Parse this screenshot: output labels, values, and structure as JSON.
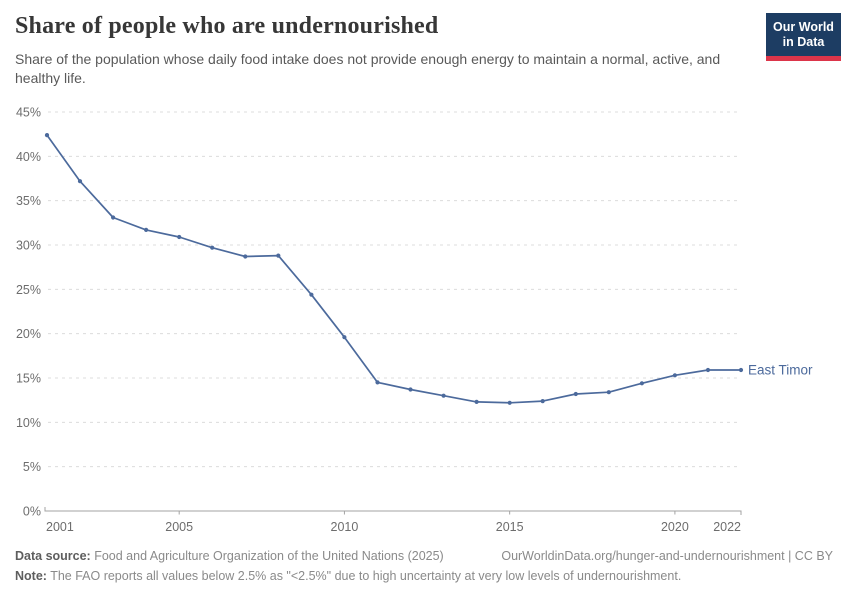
{
  "header": {
    "title": "Share of people who are undernourished",
    "subtitle": "Share of the population whose daily food intake does not provide enough energy to maintain a normal, active, and healthy life.",
    "logo": {
      "line1": "Our World",
      "line2": "in Data",
      "bg_color": "#1d3d63",
      "stripe_color": "#dc354a"
    }
  },
  "chart_data": {
    "type": "line",
    "title": "Share of people who are undernourished",
    "series": [
      {
        "name": "East Timor",
        "color": "#4C6A9C",
        "x": [
          2001,
          2002,
          2003,
          2004,
          2005,
          2006,
          2007,
          2008,
          2009,
          2010,
          2011,
          2012,
          2013,
          2014,
          2015,
          2016,
          2017,
          2018,
          2019,
          2020,
          2021,
          2022
        ],
        "values": [
          42.4,
          37.2,
          33.1,
          31.7,
          30.9,
          29.7,
          28.7,
          28.8,
          24.4,
          19.6,
          14.5,
          13.7,
          13.0,
          12.3,
          12.2,
          12.4,
          13.2,
          13.4,
          14.4,
          15.3,
          15.9,
          15.9
        ]
      }
    ],
    "xlabel": "",
    "ylabel": "",
    "xlim": [
      2001,
      2022
    ],
    "ylim": [
      0,
      45
    ],
    "x_ticks": [
      2001,
      2005,
      2010,
      2015,
      2020,
      2022
    ],
    "y_ticks": [
      0,
      5,
      10,
      15,
      20,
      25,
      30,
      35,
      40,
      45
    ],
    "y_tick_suffix": "%",
    "grid": "horizontal-dashed",
    "legend_position": "end-of-line-label",
    "gridline_color": "#dcdcdc",
    "axis_color": "#a3a3a3",
    "tick_label_color": "#6d6d6d"
  },
  "footer": {
    "source_label": "Data source:",
    "source_text": " Food and Agriculture Organization of the United Nations (2025)",
    "link": "OurWorldinData.org/hunger-and-undernourishment | CC BY",
    "note_label": "Note:",
    "note_text": " The FAO reports all values below 2.5% as \"<2.5%\" due to high uncertainty at very low levels of undernourishment."
  }
}
